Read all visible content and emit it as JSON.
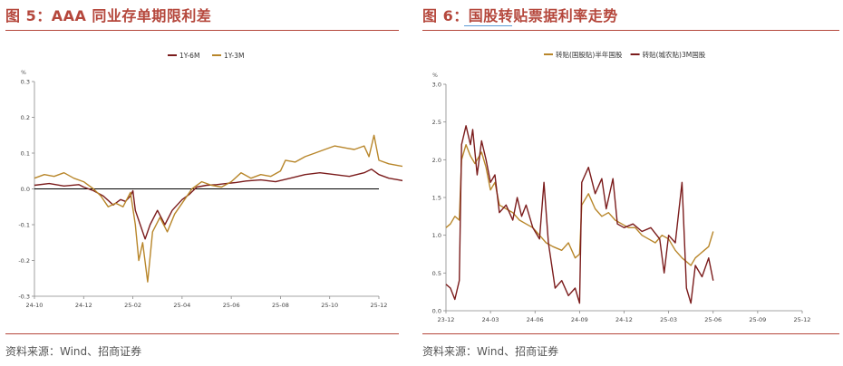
{
  "figures": [
    {
      "title": "图 5：AAA 同业存单期限利差",
      "source": "资料来源：Wind、招商证券",
      "chart_data": {
        "type": "line",
        "unit_label": "%",
        "ylim": [
          -0.3,
          0.3
        ],
        "yticks": [
          "0.3",
          "0.2",
          "0.1",
          "0.0",
          "-0.1",
          "-0.2",
          "-0.3"
        ],
        "xticks": [
          "24-10",
          "24-12",
          "25-02",
          "25-04",
          "25-06",
          "25-08",
          "25-10",
          "25-12"
        ],
        "x_range": [
          "2024-10",
          "2025-12"
        ],
        "zero_line": true,
        "legend_position": "top-center",
        "series": [
          {
            "name": "1Y-6M",
            "color": "#7b1c1c",
            "points": [
              [
                0.0,
                0.01
              ],
              [
                0.3,
                0.015
              ],
              [
                0.6,
                0.008
              ],
              [
                0.9,
                0.012
              ],
              [
                1.0,
                0.005
              ],
              [
                1.2,
                -0.005
              ],
              [
                1.4,
                -0.02
              ],
              [
                1.6,
                -0.045
              ],
              [
                1.75,
                -0.03
              ],
              [
                1.85,
                -0.035
              ],
              [
                1.95,
                -0.02
              ],
              [
                2.0,
                -0.005
              ],
              [
                2.05,
                -0.06
              ],
              [
                2.15,
                -0.1
              ],
              [
                2.25,
                -0.14
              ],
              [
                2.35,
                -0.1
              ],
              [
                2.5,
                -0.06
              ],
              [
                2.65,
                -0.1
              ],
              [
                2.8,
                -0.06
              ],
              [
                3.0,
                -0.03
              ],
              [
                3.15,
                -0.015
              ],
              [
                3.3,
                0.005
              ],
              [
                3.5,
                0.01
              ],
              [
                3.7,
                0.012
              ],
              [
                3.9,
                0.015
              ],
              [
                4.1,
                0.018
              ],
              [
                4.3,
                0.022
              ],
              [
                4.6,
                0.025
              ],
              [
                4.9,
                0.02
              ],
              [
                5.2,
                0.03
              ],
              [
                5.5,
                0.04
              ],
              [
                5.8,
                0.045
              ],
              [
                6.1,
                0.04
              ],
              [
                6.4,
                0.035
              ],
              [
                6.7,
                0.045
              ],
              [
                6.85,
                0.055
              ],
              [
                7.0,
                0.04
              ],
              [
                7.2,
                0.03
              ],
              [
                7.4,
                0.025
              ],
              [
                7.6,
                0.02
              ],
              [
                7.8,
                0.02
              ],
              [
                8.0,
                0.015
              ]
            ]
          },
          {
            "name": "1Y-3M",
            "color": "#b8862a",
            "points": [
              [
                0.0,
                0.03
              ],
              [
                0.2,
                0.04
              ],
              [
                0.4,
                0.035
              ],
              [
                0.6,
                0.045
              ],
              [
                0.8,
                0.03
              ],
              [
                1.0,
                0.02
              ],
              [
                1.2,
                0.0
              ],
              [
                1.35,
                -0.02
              ],
              [
                1.5,
                -0.05
              ],
              [
                1.65,
                -0.04
              ],
              [
                1.8,
                -0.05
              ],
              [
                1.95,
                -0.01
              ],
              [
                2.05,
                -0.1
              ],
              [
                2.12,
                -0.2
              ],
              [
                2.2,
                -0.15
              ],
              [
                2.3,
                -0.26
              ],
              [
                2.4,
                -0.12
              ],
              [
                2.55,
                -0.08
              ],
              [
                2.7,
                -0.12
              ],
              [
                2.85,
                -0.07
              ],
              [
                3.0,
                -0.04
              ],
              [
                3.2,
                0.0
              ],
              [
                3.4,
                0.02
              ],
              [
                3.6,
                0.01
              ],
              [
                3.8,
                0.005
              ],
              [
                4.0,
                0.02
              ],
              [
                4.2,
                0.045
              ],
              [
                4.4,
                0.03
              ],
              [
                4.6,
                0.04
              ],
              [
                4.8,
                0.035
              ],
              [
                5.0,
                0.05
              ],
              [
                5.1,
                0.08
              ],
              [
                5.3,
                0.075
              ],
              [
                5.5,
                0.09
              ],
              [
                5.7,
                0.1
              ],
              [
                5.9,
                0.11
              ],
              [
                6.1,
                0.12
              ],
              [
                6.3,
                0.115
              ],
              [
                6.5,
                0.11
              ],
              [
                6.7,
                0.12
              ],
              [
                6.8,
                0.09
              ],
              [
                6.9,
                0.15
              ],
              [
                7.0,
                0.08
              ],
              [
                7.2,
                0.07
              ],
              [
                7.4,
                0.065
              ],
              [
                7.6,
                0.06
              ],
              [
                7.75,
                0.04
              ],
              [
                7.9,
                0.045
              ],
              [
                8.0,
                0.05
              ]
            ]
          }
        ]
      }
    },
    {
      "title": "图 6：国股转贴票据利率走势",
      "source": "资料来源：Wind、招商证券",
      "chart_data": {
        "type": "line",
        "unit_label": "%",
        "ylim": [
          0.0,
          3.0
        ],
        "yticks": [
          "3.0",
          "2.5",
          "2.0",
          "1.5",
          "1.0",
          "0.5",
          "0.0"
        ],
        "xticks": [
          "23-12",
          "24-03",
          "24-06",
          "24-09",
          "24-12",
          "25-03",
          "25-06",
          "25-09",
          "25-12"
        ],
        "x_range": [
          "2023-12",
          "2025-12"
        ],
        "legend_position": "top-center",
        "series": [
          {
            "name": "转贴(国股贴)半年国股",
            "color": "#b8862a",
            "points": [
              [
                0.0,
                1.1
              ],
              [
                0.1,
                1.15
              ],
              [
                0.2,
                1.25
              ],
              [
                0.3,
                1.2
              ],
              [
                0.35,
                2.0
              ],
              [
                0.45,
                2.2
              ],
              [
                0.55,
                2.05
              ],
              [
                0.65,
                1.95
              ],
              [
                0.8,
                2.1
              ],
              [
                0.9,
                1.9
              ],
              [
                1.0,
                1.6
              ],
              [
                1.1,
                1.7
              ],
              [
                1.2,
                1.4
              ],
              [
                1.35,
                1.35
              ],
              [
                1.5,
                1.3
              ],
              [
                1.65,
                1.2
              ],
              [
                1.8,
                1.15
              ],
              [
                1.95,
                1.1
              ],
              [
                2.1,
                1.0
              ],
              [
                2.25,
                0.9
              ],
              [
                2.4,
                0.85
              ],
              [
                2.6,
                0.8
              ],
              [
                2.75,
                0.9
              ],
              [
                2.9,
                0.7
              ],
              [
                3.0,
                0.75
              ],
              [
                3.05,
                1.4
              ],
              [
                3.2,
                1.55
              ],
              [
                3.35,
                1.35
              ],
              [
                3.5,
                1.25
              ],
              [
                3.65,
                1.3
              ],
              [
                3.8,
                1.2
              ],
              [
                3.95,
                1.15
              ],
              [
                4.1,
                1.1
              ],
              [
                4.25,
                1.1
              ],
              [
                4.4,
                1.0
              ],
              [
                4.55,
                0.95
              ],
              [
                4.7,
                0.9
              ],
              [
                4.85,
                1.0
              ],
              [
                5.0,
                0.95
              ],
              [
                5.15,
                0.8
              ],
              [
                5.3,
                0.7
              ],
              [
                5.4,
                0.65
              ],
              [
                5.5,
                0.6
              ],
              [
                5.6,
                0.7
              ],
              [
                5.7,
                0.75
              ],
              [
                5.8,
                0.8
              ],
              [
                5.9,
                0.85
              ],
              [
                6.0,
                1.05
              ]
            ]
          },
          {
            "name": "转贴(城农贴)3M国股",
            "color": "#7b1c1c",
            "points": [
              [
                0.0,
                0.35
              ],
              [
                0.1,
                0.3
              ],
              [
                0.2,
                0.15
              ],
              [
                0.3,
                0.4
              ],
              [
                0.35,
                2.2
              ],
              [
                0.45,
                2.45
              ],
              [
                0.55,
                2.2
              ],
              [
                0.6,
                2.4
              ],
              [
                0.7,
                1.8
              ],
              [
                0.8,
                2.25
              ],
              [
                0.9,
                2.0
              ],
              [
                1.0,
                1.7
              ],
              [
                1.1,
                1.8
              ],
              [
                1.2,
                1.3
              ],
              [
                1.35,
                1.4
              ],
              [
                1.5,
                1.2
              ],
              [
                1.6,
                1.5
              ],
              [
                1.7,
                1.25
              ],
              [
                1.8,
                1.4
              ],
              [
                1.95,
                1.1
              ],
              [
                2.1,
                0.95
              ],
              [
                2.2,
                1.7
              ],
              [
                2.3,
                0.9
              ],
              [
                2.45,
                0.3
              ],
              [
                2.6,
                0.4
              ],
              [
                2.75,
                0.2
              ],
              [
                2.9,
                0.3
              ],
              [
                3.0,
                0.1
              ],
              [
                3.05,
                1.7
              ],
              [
                3.2,
                1.9
              ],
              [
                3.35,
                1.55
              ],
              [
                3.5,
                1.75
              ],
              [
                3.6,
                1.35
              ],
              [
                3.75,
                1.75
              ],
              [
                3.85,
                1.15
              ],
              [
                4.0,
                1.1
              ],
              [
                4.2,
                1.15
              ],
              [
                4.4,
                1.05
              ],
              [
                4.6,
                1.1
              ],
              [
                4.8,
                0.95
              ],
              [
                4.9,
                0.5
              ],
              [
                5.0,
                1.0
              ],
              [
                5.15,
                0.9
              ],
              [
                5.3,
                1.7
              ],
              [
                5.4,
                0.3
              ],
              [
                5.5,
                0.1
              ],
              [
                5.6,
                0.6
              ],
              [
                5.75,
                0.45
              ],
              [
                5.9,
                0.7
              ],
              [
                6.0,
                0.4
              ]
            ]
          }
        ]
      }
    }
  ]
}
